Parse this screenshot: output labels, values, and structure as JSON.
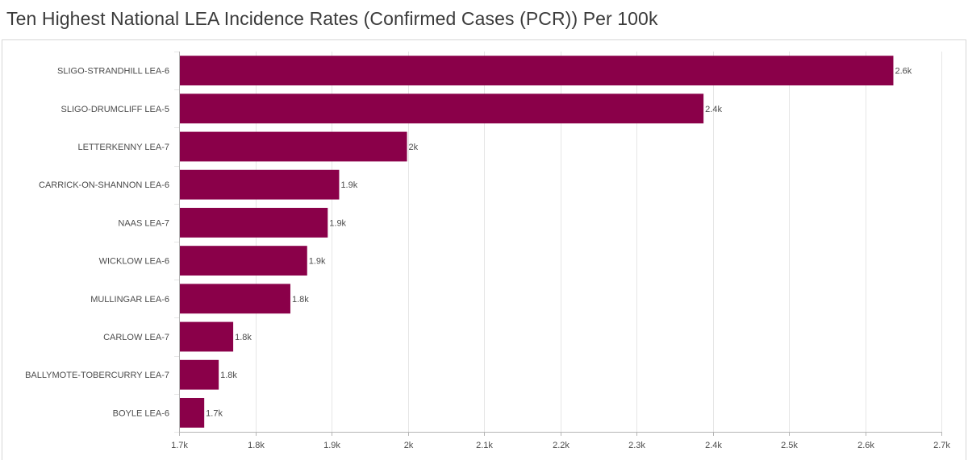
{
  "title": "Ten Highest National LEA Incidence Rates (Confirmed Cases (PCR)) Per 100k",
  "colors": {
    "bar": "#8a0049",
    "grid": "#e6e6e6",
    "axis": "#b5b5b5"
  },
  "chart_data": {
    "type": "bar",
    "orientation": "horizontal",
    "categories": [
      "SLIGO-STRANDHILL LEA-6",
      "SLIGO-DRUMCLIFF LEA-5",
      "LETTERKENNY LEA-7",
      "CARRICK-ON-SHANNON LEA-6",
      "NAAS LEA-7",
      "WICKLOW LEA-6",
      "MULLINGAR LEA-6",
      "CARLOW LEA-7",
      "BALLYMOTE-TOBERCURRY LEA-7",
      "BOYLE LEA-6"
    ],
    "values": [
      2637,
      2388,
      1999,
      1910,
      1895,
      1868,
      1846,
      1771,
      1752,
      1733
    ],
    "data_labels": [
      "2.6k",
      "2.4k",
      "2k",
      "1.9k",
      "1.9k",
      "1.9k",
      "1.8k",
      "1.8k",
      "1.8k",
      "1.7k"
    ],
    "xlim": [
      1700,
      2700
    ],
    "xticks": [
      1700,
      1800,
      1900,
      2000,
      2100,
      2200,
      2300,
      2400,
      2500,
      2600,
      2700
    ],
    "xtick_labels": [
      "1.7k",
      "1.8k",
      "1.9k",
      "2k",
      "2.1k",
      "2.2k",
      "2.3k",
      "2.4k",
      "2.5k",
      "2.6k",
      "2.7k"
    ],
    "xlabel": "",
    "ylabel": "",
    "grid": true,
    "legend": "none"
  }
}
